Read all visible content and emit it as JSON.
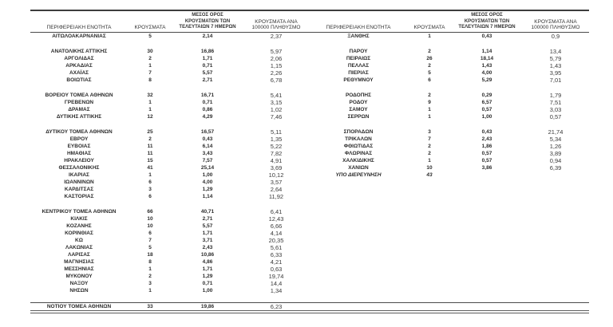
{
  "colors": {
    "background": "#ffffff",
    "text": "#3a3a3a",
    "bold_text": "#2c2c2c",
    "rule": "#4a4a4a"
  },
  "table": {
    "headers": [
      "ΠΕΡΙΦΕΡΕΙΑΚΗ ΕΝΟΤΗΤΑ",
      "ΚΡΟΥΣΜΑΤΑ",
      "ΜΕΣΟΣ ΟΡΟΣ ΚΡΟΥΣΜΑΤΩΝ ΤΩΝ ΤΕΛΕΥΤΑΙΩΝ 7 ΗΜΕΡΩΝ",
      "ΚΡΟΥΣΜΑΤΑ ΑΝΑ 100000 ΠΛΗΘΥΣΜΟ"
    ],
    "rows": [
      {
        "l": [
          "ΑΙΤΩΛΟΑΚΑΡΝΑΝΙΑΣ",
          "5",
          "2,14",
          "2,37"
        ],
        "r": [
          "ΞΑΝΘΗΣ",
          "1",
          "0,43",
          "0,9"
        ]
      },
      {
        "spacer": true
      },
      {
        "l": [
          "ΑΝΑΤΟΛΙΚΗΣ ΑΤΤΙΚΗΣ",
          "30",
          "16,86",
          "5,97"
        ],
        "r": [
          "ΠΑΡΟΥ",
          "2",
          "1,14",
          "13,4"
        ]
      },
      {
        "l": [
          "ΑΡΓΟΛΙΔΑΣ",
          "2",
          "1,71",
          "2,06"
        ],
        "r": [
          "ΠΕΙΡΑΙΩΣ",
          "26",
          "18,14",
          "5,79"
        ]
      },
      {
        "l": [
          "ΑΡΚΑΔΙΑΣ",
          "1",
          "0,71",
          "1,15"
        ],
        "r": [
          "ΠΕΛΛΑΣ",
          "2",
          "1,43",
          "1,43"
        ]
      },
      {
        "l": [
          "ΑΧΑΪΑΣ",
          "7",
          "5,57",
          "2,26"
        ],
        "r": [
          "ΠΙΕΡΙΑΣ",
          "5",
          "4,00",
          "3,95"
        ]
      },
      {
        "l": [
          "ΒΟΙΩΤΙΑΣ",
          "8",
          "2,71",
          "6,78"
        ],
        "r": [
          "ΡΕΘΥΜΝΟΥ",
          "6",
          "5,29",
          "7,01"
        ]
      },
      {
        "spacer": true
      },
      {
        "l": [
          "ΒΟΡΕΙΟΥ ΤΟΜΕΑ ΑΘΗΝΩΝ",
          "32",
          "16,71",
          "5,41"
        ],
        "r": [
          "ΡΟΔΟΠΗΣ",
          "2",
          "0,29",
          "1,79"
        ]
      },
      {
        "l": [
          "ΓΡΕΒΕΝΩΝ",
          "1",
          "0,71",
          "3,15"
        ],
        "r": [
          "ΡΟΔΟΥ",
          "9",
          "6,57",
          "7,51"
        ]
      },
      {
        "l": [
          "ΔΡΑΜΑΣ",
          "1",
          "0,86",
          "1,02"
        ],
        "r": [
          "ΣΑΜΟΥ",
          "1",
          "0,57",
          "3,03"
        ]
      },
      {
        "l": [
          "ΔΥΤΙΚΗΣ ΑΤΤΙΚΗΣ",
          "12",
          "4,29",
          "7,46"
        ],
        "r": [
          "ΣΕΡΡΩΝ",
          "1",
          "1,00",
          "0,57"
        ]
      },
      {
        "spacer": true
      },
      {
        "l": [
          "ΔΥΤΙΚΟΥ ΤΟΜΕΑ ΑΘΗΝΩΝ",
          "25",
          "16,57",
          "5,11"
        ],
        "r": [
          "ΣΠΟΡΑΔΩΝ",
          "3",
          "0,43",
          "21,74"
        ]
      },
      {
        "l": [
          "ΕΒΡΟΥ",
          "2",
          "0,43",
          "1,35"
        ],
        "r": [
          "ΤΡΙΚΑΛΩΝ",
          "7",
          "2,43",
          "5,34"
        ]
      },
      {
        "l": [
          "ΕΥΒΟΙΑΣ",
          "11",
          "6,14",
          "5,22"
        ],
        "r": [
          "ΦΘΙΩΤΙΔΑΣ",
          "2",
          "1,86",
          "1,26"
        ]
      },
      {
        "l": [
          "ΗΜΑΘΙΑΣ",
          "11",
          "3,43",
          "7,82"
        ],
        "r": [
          "ΦΛΩΡΙΝΑΣ",
          "2",
          "0,57",
          "3,89"
        ]
      },
      {
        "l": [
          "ΗΡΑΚΛΕΙΟΥ",
          "15",
          "7,57",
          "4,91"
        ],
        "r": [
          "ΧΑΛΚΙΔΙΚΗΣ",
          "1",
          "0,57",
          "0,94"
        ]
      },
      {
        "l": [
          "ΘΕΣΣΑΛΟΝΙΚΗΣ",
          "41",
          "25,14",
          "3,69"
        ],
        "r": [
          "ΧΑΝΙΩΝ",
          "10",
          "3,86",
          "6,39"
        ]
      },
      {
        "l": [
          "ΙΚΑΡΙΑΣ",
          "1",
          "1,00",
          "10,12"
        ],
        "r": [
          "ΥΠΟ ΔΙΕΡΕΥΝΗΣΗ",
          "43",
          "",
          ""
        ],
        "r_italic": true
      },
      {
        "l": [
          "ΙΩΑΝΝΙΝΩΝ",
          "6",
          "4,00",
          "3,57"
        ]
      },
      {
        "l": [
          "ΚΑΡΔΙΤΣΑΣ",
          "3",
          "1,29",
          "2,64"
        ]
      },
      {
        "l": [
          "ΚΑΣΤΟΡΙΑΣ",
          "6",
          "1,14",
          "11,92"
        ]
      },
      {
        "spacer": true
      },
      {
        "l": [
          "ΚΕΝΤΡΙΚΟΥ ΤΟΜΕΑ ΑΘΗΝΩΝ",
          "66",
          "40,71",
          "6,41"
        ]
      },
      {
        "l": [
          "ΚΙΛΚΙΣ",
          "10",
          "2,71",
          "12,43"
        ]
      },
      {
        "l": [
          "ΚΟΖΑΝΗΣ",
          "10",
          "5,57",
          "6,66"
        ]
      },
      {
        "l": [
          "ΚΟΡΙΝΘΙΑΣ",
          "6",
          "1,71",
          "4,14"
        ]
      },
      {
        "l": [
          "ΚΩ",
          "7",
          "3,71",
          "20,35"
        ]
      },
      {
        "l": [
          "ΛΑΚΩΝΙΑΣ",
          "5",
          "2,43",
          "5,61"
        ]
      },
      {
        "l": [
          "ΛΑΡΙΣΑΣ",
          "18",
          "10,86",
          "6,33"
        ]
      },
      {
        "l": [
          "ΜΑΓΝΗΣΙΑΣ",
          "8",
          "4,86",
          "4,21"
        ]
      },
      {
        "l": [
          "ΜΕΣΣΗΝΙΑΣ",
          "1",
          "1,71",
          "0,63"
        ]
      },
      {
        "l": [
          "ΜΥΚΟΝΟΥ",
          "2",
          "1,29",
          "19,74"
        ]
      },
      {
        "l": [
          "ΝΑΞΟΥ",
          "3",
          "0,71",
          "14,4"
        ]
      },
      {
        "l": [
          "ΝΗΣΩΝ",
          "1",
          "1,00",
          "1,34"
        ]
      },
      {
        "spacer": true
      },
      {
        "l": [
          "ΝΟΤΙΟΥ ΤΟΜΕΑ ΑΘΗΝΩΝ",
          "33",
          "19,86",
          "6,23"
        ],
        "final": true
      }
    ]
  }
}
